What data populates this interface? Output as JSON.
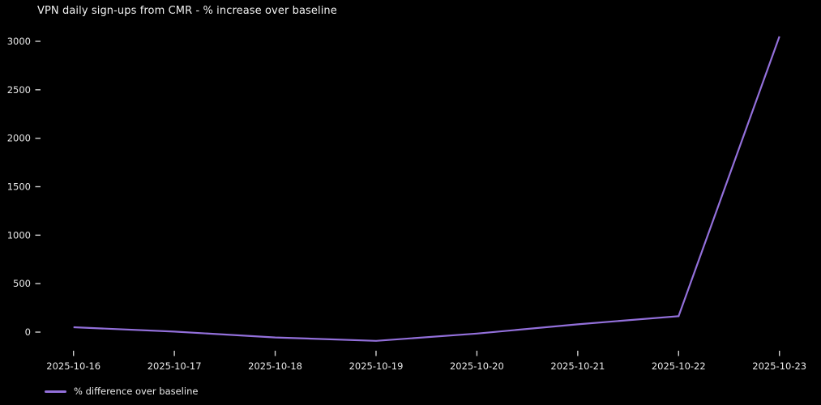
{
  "chart_data": {
    "type": "line",
    "title": "VPN daily sign-ups from CMR - % increase over baseline",
    "x": [
      "2025-10-16",
      "2025-10-17",
      "2025-10-18",
      "2025-10-19",
      "2025-10-20",
      "2025-10-21",
      "2025-10-22",
      "2025-10-23"
    ],
    "series": [
      {
        "name": "% difference over baseline",
        "values": [
          50,
          5,
          -55,
          -90,
          -15,
          80,
          165,
          3050
        ],
        "color": "#9370db"
      }
    ],
    "yticks": [
      0,
      500,
      1000,
      1500,
      2000,
      2500,
      3000
    ],
    "ylim": [
      -150,
      3100
    ],
    "xlabel": "",
    "ylabel": "",
    "grid": false,
    "legend_position": "lower-left",
    "background_color": "#000000",
    "text_color": "#e8e8e8"
  }
}
